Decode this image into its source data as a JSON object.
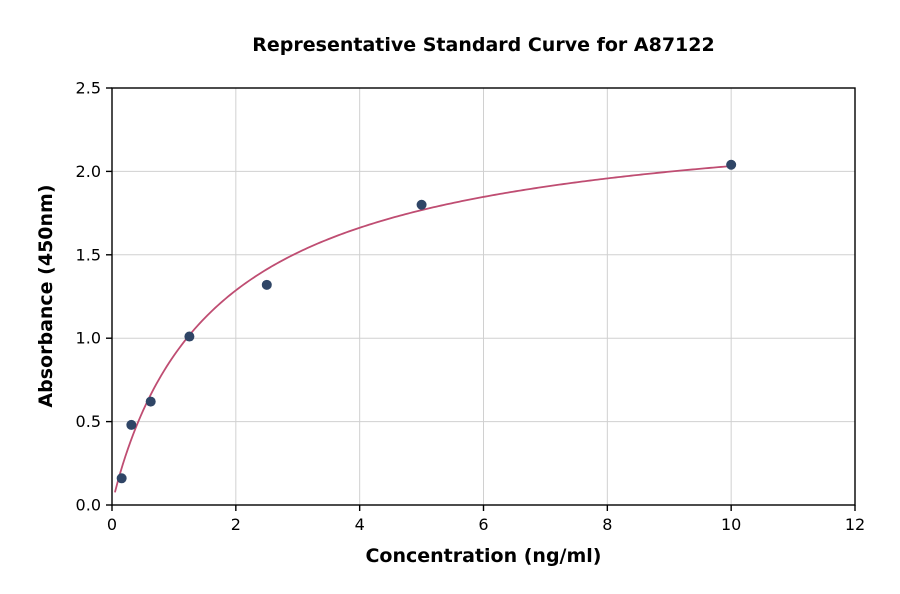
{
  "chart_data": {
    "type": "scatter",
    "title": "Representative Standard Curve for A87122",
    "xlabel": "Concentration (ng/ml)",
    "ylabel": "Absorbance (450nm)",
    "xlim": [
      0,
      12
    ],
    "ylim": [
      0,
      2.5
    ],
    "xticks": [
      "0",
      "2",
      "4",
      "6",
      "8",
      "10",
      "12"
    ],
    "yticks": [
      "0.0",
      "0.5",
      "1.0",
      "1.5",
      "2.0",
      "2.5"
    ],
    "grid": true,
    "legend": "none",
    "points": [
      {
        "x": 0.156,
        "y": 0.16
      },
      {
        "x": 0.3125,
        "y": 0.48
      },
      {
        "x": 0.625,
        "y": 0.62
      },
      {
        "x": 1.25,
        "y": 1.01
      },
      {
        "x": 2.5,
        "y": 1.32
      },
      {
        "x": 5.0,
        "y": 1.8
      },
      {
        "x": 10.0,
        "y": 2.04
      }
    ],
    "fit_curve": {
      "type": "saturation-fit",
      "vmax": 2.42,
      "km": 1.75,
      "hill": 0.95,
      "x_range": [
        0.05,
        10.0
      ]
    },
    "colors": {
      "point": "#2f4566",
      "curve": "#bf4d72",
      "grid": "#d0d0d0",
      "axis": "#000000",
      "background": "#ffffff"
    }
  }
}
